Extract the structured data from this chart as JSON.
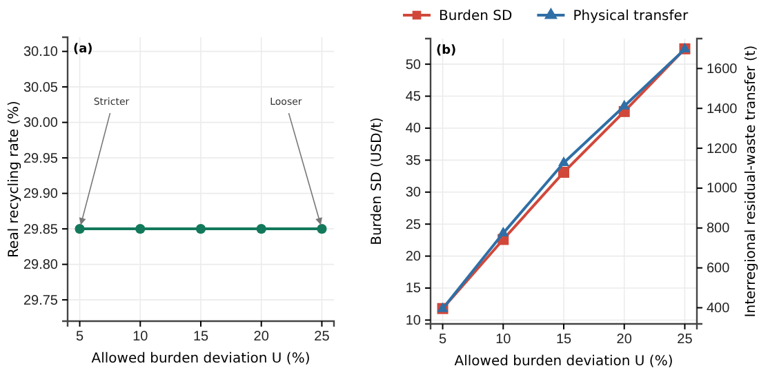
{
  "chart_data": [
    {
      "type": "line",
      "title": "(a)",
      "xlabel": "Allowed burden deviation U (%)",
      "ylabel": "Real recycling rate (%)",
      "x": [
        5,
        10,
        15,
        20,
        25
      ],
      "series": [
        {
          "color": "#13795b",
          "values": [
            29.85,
            29.85,
            29.85,
            29.85,
            29.85
          ]
        }
      ],
      "xlim": [
        4,
        26
      ],
      "xticks": [
        5,
        10,
        15,
        20,
        25
      ],
      "ylim": [
        29.72,
        30.12
      ],
      "yticks": [
        {
          "value": 29.75,
          "label": "29.75"
        },
        {
          "value": 29.8,
          "label": "29.80"
        },
        {
          "value": 29.85,
          "label": "29.85"
        },
        {
          "value": 29.9,
          "label": "29.90"
        },
        {
          "value": 29.95,
          "label": "29.95"
        },
        {
          "value": 30,
          "label": "30.00"
        },
        {
          "value": 30.05,
          "label": "30.05"
        },
        {
          "value": 30.1,
          "label": "30.10"
        }
      ],
      "grid": true,
      "marker": "circle",
      "line_style": "solid",
      "annotations": [
        {
          "text": "Stricter",
          "x": 5,
          "y": 29.85
        },
        {
          "text": "Looser",
          "x": 25,
          "y": 29.85
        }
      ]
    },
    {
      "type": "line",
      "title": "(b)",
      "xlabel": "Allowed burden deviation U (%)",
      "ylabel": "Burden SD (USD/t)",
      "y2label": "Interregional residual-waste transfer (t)",
      "x": [
        5,
        10,
        15,
        20,
        25
      ],
      "series": [
        {
          "name": "Burden SD",
          "color": "#d1483b",
          "values": [
            11.8,
            22.6,
            33.1,
            42.6,
            52.4
          ],
          "marker": "square"
        },
        {
          "name": "Physical transfer",
          "color": "#2f6fa6",
          "values": [
            395,
            774,
            1127,
            1411,
            1697
          ],
          "axis": "y2",
          "marker": "triangle"
        }
      ],
      "xlim": [
        4,
        26
      ],
      "xticks": [
        5,
        10,
        15,
        20,
        25
      ],
      "ylim": [
        9.4,
        54
      ],
      "yticks": [
        10,
        15,
        20,
        25,
        30,
        35,
        40,
        45,
        50
      ],
      "y2lim": [
        319,
        1750
      ],
      "y2ticks": [
        400,
        600,
        800,
        1000,
        1200,
        1400,
        1600
      ],
      "grid": true,
      "legend": "top",
      "line_style": "solid"
    }
  ]
}
